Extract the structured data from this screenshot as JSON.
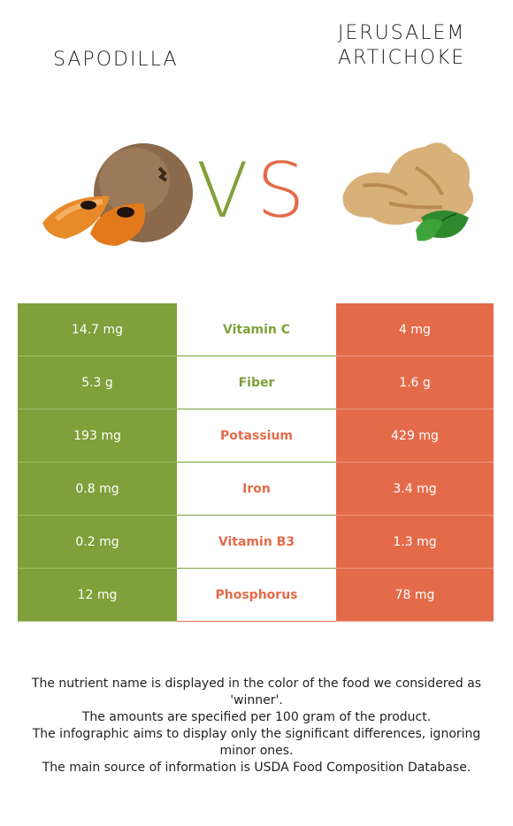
{
  "left_food": {
    "name": "Sapodilla",
    "color": "#7fa03a",
    "image": "sapodilla-image"
  },
  "right_food": {
    "name": "Jerusalem artichoke",
    "color": "#e36b4a",
    "image": "jerusalem-artichoke-image"
  },
  "vs": {
    "v": "V",
    "s": "S"
  },
  "rows": [
    {
      "left": "14.7 mg",
      "nutrient": "Vitamin C",
      "right": "4 mg",
      "winner": "left"
    },
    {
      "left": "5.3 g",
      "nutrient": "Fiber",
      "right": "1.6 g",
      "winner": "left"
    },
    {
      "left": "193 mg",
      "nutrient": "Potassium",
      "right": "429 mg",
      "winner": "right"
    },
    {
      "left": "0.8 mg",
      "nutrient": "Iron",
      "right": "3.4 mg",
      "winner": "right"
    },
    {
      "left": "0.2 mg",
      "nutrient": "Vitamin B3",
      "right": "1.3 mg",
      "winner": "right"
    },
    {
      "left": "12 mg",
      "nutrient": "Phosphorus",
      "right": "78 mg",
      "winner": "right"
    }
  ],
  "footnotes": [
    "The nutrient name is displayed in the color of the food we considered as 'winner'.",
    "The amounts are specified per 100 gram of the product.",
    "The infographic aims to display only the significant differences, ignoring minor ones.",
    "The main source of information is USDA Food Composition Database."
  ]
}
